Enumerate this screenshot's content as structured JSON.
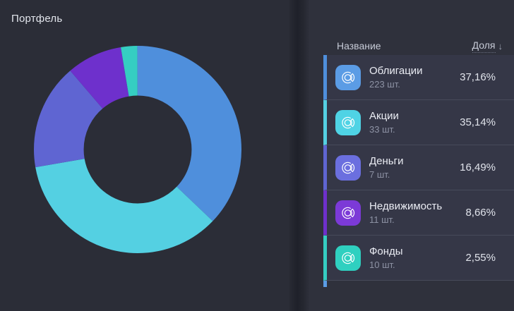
{
  "page_title": "Портфель",
  "panel": {
    "columns": {
      "name": "Название",
      "share": "Доля",
      "sort_icon": "↓"
    },
    "rows": [
      {
        "name": "Облигации",
        "count": "223 шт.",
        "share": "37,16%",
        "value": 37.16,
        "color": "#4f8fdc",
        "icon_color": "#5b9ce5"
      },
      {
        "name": "Акции",
        "count": "33 шт.",
        "share": "35,14%",
        "value": 35.14,
        "color": "#54d0e2",
        "icon_color": "#4fd3e5"
      },
      {
        "name": "Деньги",
        "count": "7 шт.",
        "share": "16,49%",
        "value": 16.49,
        "color": "#5f65d2",
        "icon_color": "#6b6fdf"
      },
      {
        "name": "Недвижимость",
        "count": "11 шт.",
        "share": "8,66%",
        "value": 8.66,
        "color": "#6e30cc",
        "icon_color": "#7c3ad7"
      },
      {
        "name": "Фонды",
        "count": "10 шт.",
        "share": "2,55%",
        "value": 2.55,
        "color": "#35cec2",
        "icon_color": "#2fd0c0"
      }
    ],
    "next_row_stub_color": "#5b9ce5"
  },
  "chart_data": {
    "type": "pie",
    "subtype": "donut",
    "title": "Портфель",
    "categories": [
      "Облигации",
      "Акции",
      "Деньги",
      "Недвижимость",
      "Фонды"
    ],
    "values": [
      37.16,
      35.14,
      16.49,
      8.66,
      2.55
    ],
    "colors": [
      "#4f8fdc",
      "#54d0e2",
      "#5f65d2",
      "#6e30cc",
      "#35cec2"
    ],
    "units": "%",
    "start_angle_deg": 0,
    "direction": "clockwise",
    "inner_radius_ratio": 0.52,
    "legend_position": "right-table"
  }
}
